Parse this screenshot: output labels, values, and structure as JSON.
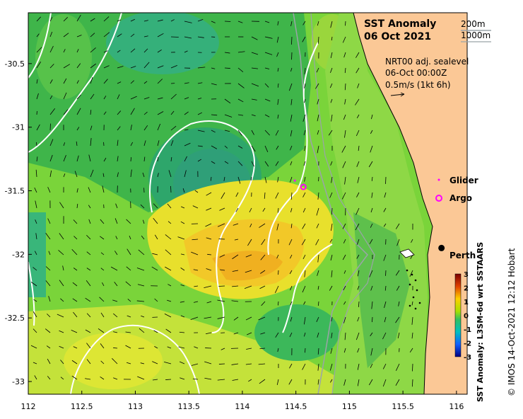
{
  "title_line1": "SST Anomaly",
  "title_line2": "06 Oct 2021",
  "depth_labels": [
    "200m",
    "1000m"
  ],
  "current_info": [
    "NRT00 adj. sealevel",
    "06-Oct 00:00Z",
    "0.5m/s (1kt 6h)"
  ],
  "legend": {
    "glider": "Glider",
    "argo": "Argo"
  },
  "place_label": "Perth",
  "colorbar": {
    "label": "SST Anomaly: L3SM-6d wrt SSTAARS",
    "ticks": [
      "3",
      "2",
      "1",
      "0",
      "-1",
      "-2",
      "-3"
    ],
    "min": -3,
    "max": 3
  },
  "credit": "© IMOS 14-Oct-2021 12:12 Hobart",
  "axes": {
    "x_ticks": [
      "112",
      "112.5",
      "113",
      "113.5",
      "114",
      "114.5",
      "115",
      "115.5",
      "116"
    ],
    "y_ticks": [
      "-30.5",
      "-31",
      "-31.5",
      "-32",
      "-32.5",
      "-33"
    ],
    "lon_range": [
      112,
      116.1
    ],
    "lat_range": [
      -33.1,
      -30.1
    ]
  },
  "markers": {
    "argo": {
      "lon": 114.57,
      "lat": -31.47
    },
    "glider": {
      "lon": 114.49,
      "lat": -31.42
    },
    "perth": {
      "lon": 115.86,
      "lat": -31.95
    }
  },
  "colors": {
    "land": "#fbc896",
    "argo": "#ff00ff",
    "glider": "#ff00ff",
    "contour": "#ffffff"
  }
}
